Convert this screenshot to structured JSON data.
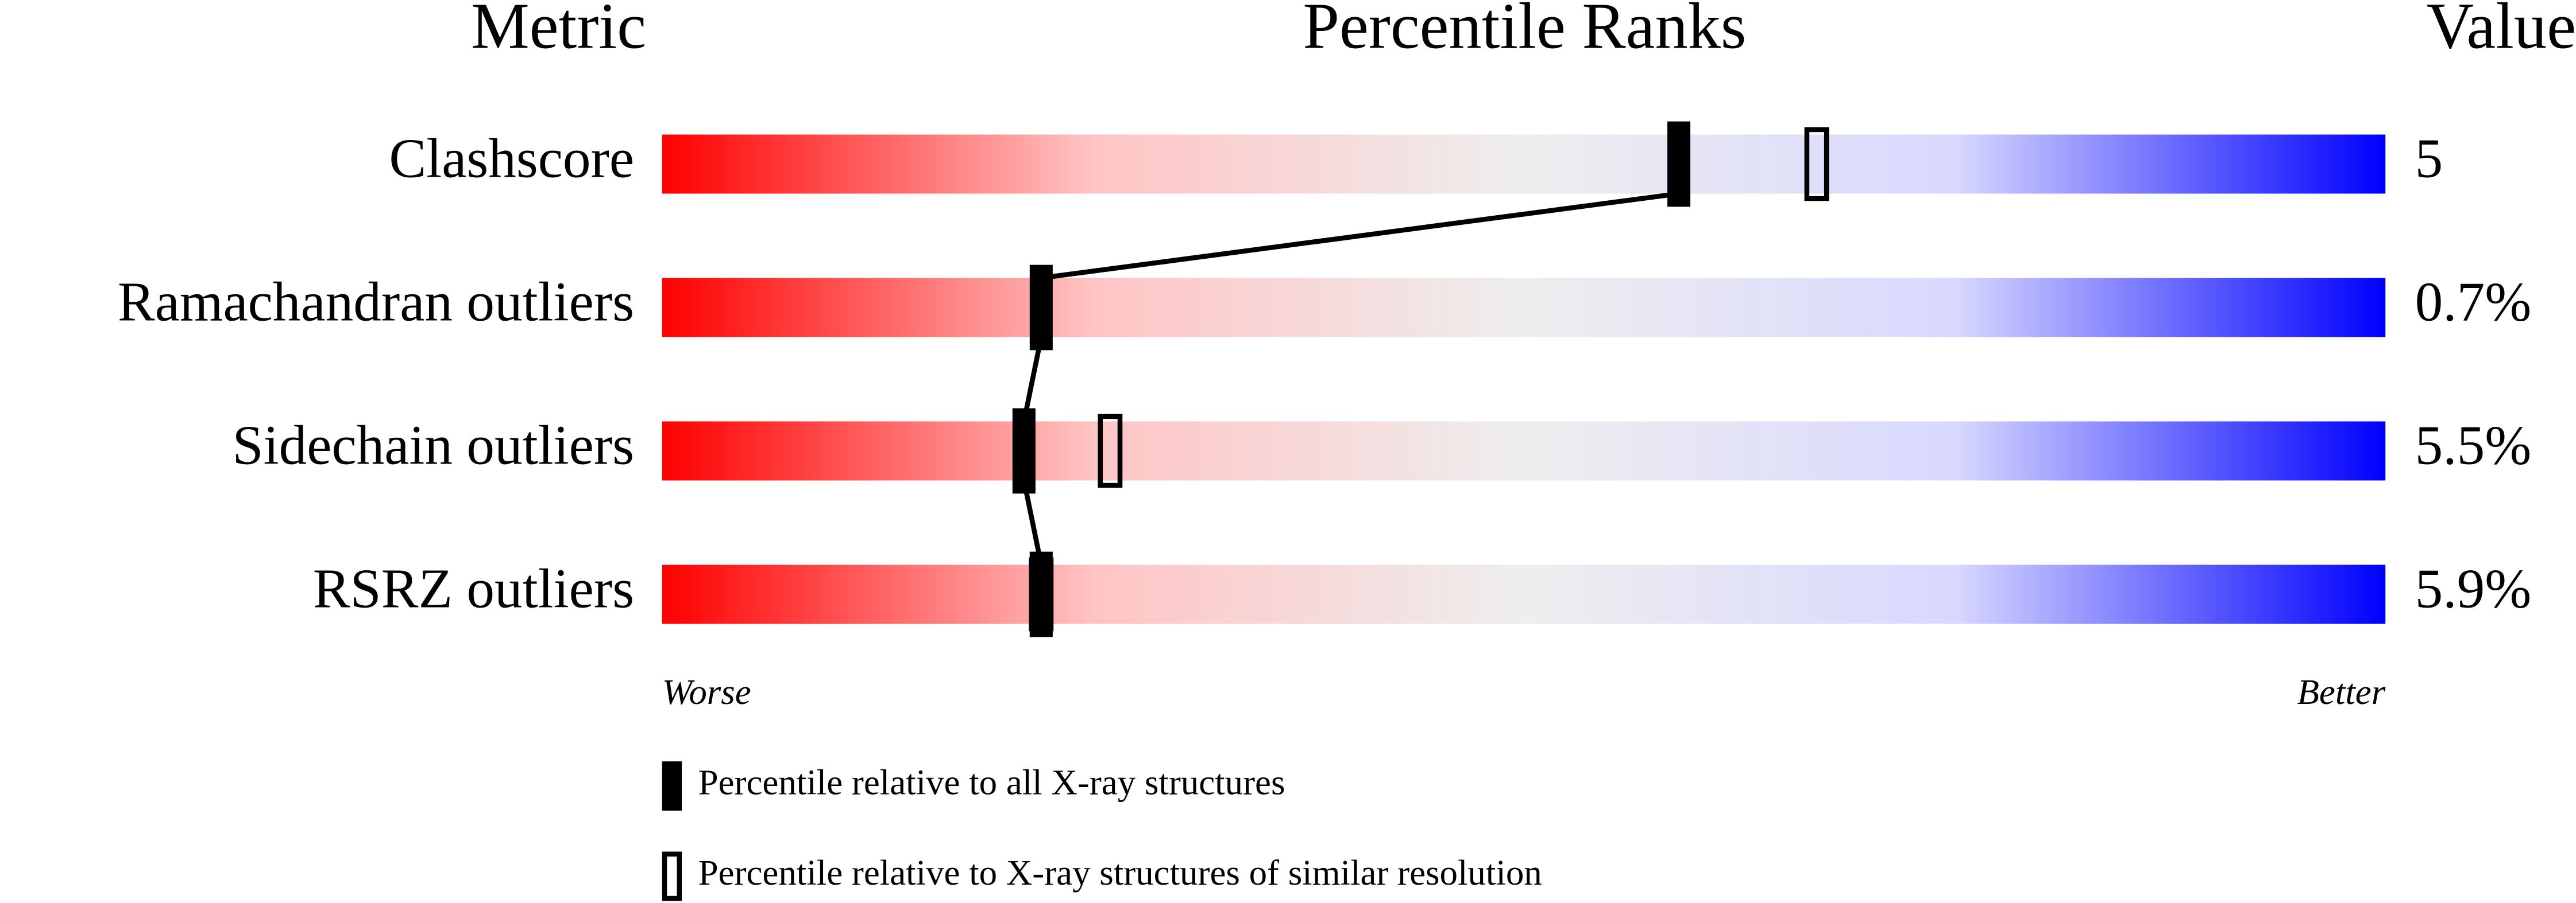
{
  "chart_data": {
    "type": "slider",
    "headers": {
      "metric": "Metric",
      "ranks": "Percentile Ranks",
      "value": "Value"
    },
    "categories": [
      "Clashscore",
      "Ramachandran outliers",
      "Sidechain outliers",
      "RSRZ outliers"
    ],
    "metric_values": [
      "5",
      "0.7%",
      "5.5%",
      "5.9%"
    ],
    "series": [
      {
        "name": "Percentile relative to all X-ray structures",
        "style": "filled",
        "color": "#000000",
        "values": [
          59,
          22,
          21,
          22
        ]
      },
      {
        "name": "Percentile relative to X-ray structures of similar resolution",
        "style": "open",
        "color": "#000000",
        "values": [
          67,
          null,
          26,
          22
        ]
      }
    ],
    "xlim": [
      0,
      100
    ],
    "end_labels": {
      "low": "Worse",
      "high": "Better"
    },
    "gradient": [
      "#ff0000",
      "#ffc4c4",
      "#eeeeee",
      "#d8d8ff",
      "#0000ff"
    ]
  }
}
